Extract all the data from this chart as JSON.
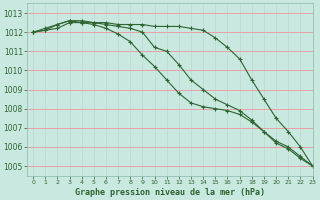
{
  "title": "Graphe pression niveau de la mer (hPa)",
  "background_color": "#c8e8e0",
  "grid_color_h": "#e8a0a8",
  "grid_color_v": "#c0d8d0",
  "line_color": "#2d6430",
  "xlim": [
    -0.5,
    23
  ],
  "ylim": [
    1004.5,
    1013.5
  ],
  "yticks": [
    1005,
    1006,
    1007,
    1008,
    1009,
    1010,
    1011,
    1012,
    1013
  ],
  "xticks": [
    0,
    1,
    2,
    3,
    4,
    5,
    6,
    7,
    8,
    9,
    10,
    11,
    12,
    13,
    14,
    15,
    16,
    17,
    18,
    19,
    20,
    21,
    22,
    23
  ],
  "series": [
    [
      1012.0,
      1012.1,
      1012.4,
      1012.6,
      1012.6,
      1012.5,
      1012.5,
      1012.4,
      1012.4,
      1012.4,
      1012.3,
      1012.3,
      1012.3,
      1012.2,
      1012.1,
      1011.7,
      1011.2,
      1010.6,
      1009.5,
      1008.5,
      1007.5,
      1006.8,
      1006.0,
      1005.0
    ],
    [
      1012.0,
      1012.2,
      1012.4,
      1012.6,
      1012.5,
      1012.5,
      1012.4,
      1012.3,
      1012.2,
      1012.0,
      1011.2,
      1011.0,
      1010.3,
      1009.5,
      1009.0,
      1008.5,
      1008.2,
      1007.9,
      1007.4,
      1006.8,
      1006.2,
      1005.9,
      1005.4,
      1005.0
    ],
    [
      1012.0,
      1012.1,
      1012.2,
      1012.5,
      1012.5,
      1012.4,
      1012.2,
      1011.9,
      1011.5,
      1010.8,
      1010.2,
      1009.5,
      1008.8,
      1008.3,
      1008.1,
      1008.0,
      1007.9,
      1007.7,
      1007.3,
      1006.8,
      1006.3,
      1006.0,
      1005.5,
      1005.0
    ]
  ]
}
